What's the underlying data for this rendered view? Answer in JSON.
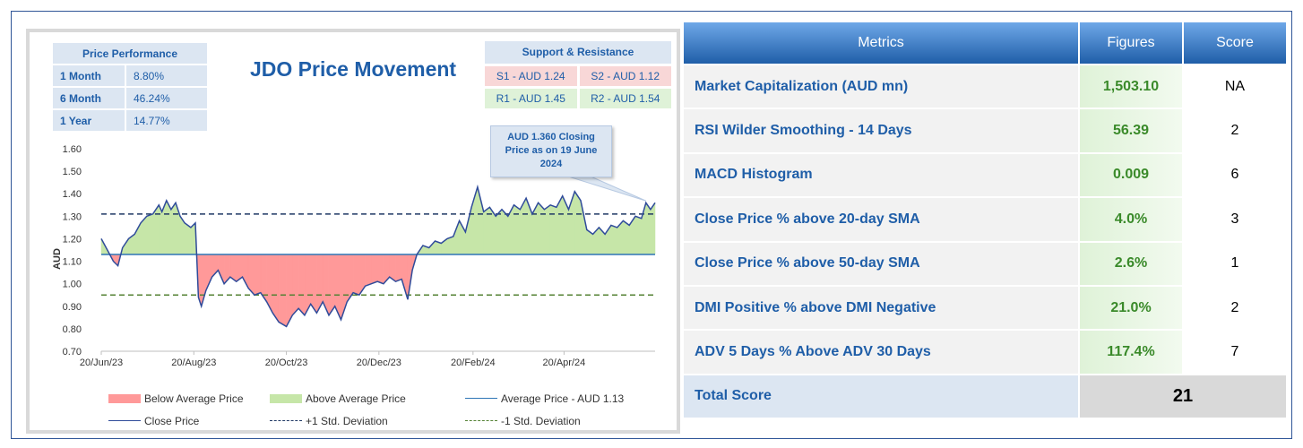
{
  "performance": {
    "header": "Price Performance",
    "rows": [
      {
        "label": "1 Month",
        "value": "8.80%"
      },
      {
        "label": "6 Month",
        "value": "46.24%"
      },
      {
        "label": "1 Year",
        "value": "14.77%"
      }
    ]
  },
  "support_resistance": {
    "header": "Support & Resistance",
    "s1": "S1 - AUD 1.24",
    "s2": "S2 - AUD 1.12",
    "r1": "R1 - AUD 1.45",
    "r2": "R2 - AUD 1.54"
  },
  "callout": {
    "line1": "AUD 1.360 Closing",
    "line2": "Price as on 19 June",
    "line3": "2024"
  },
  "colors": {
    "below_fill": "#ff9999",
    "above_fill": "#c6e6a8",
    "close_line": "#2f4b9a",
    "avg_line": "#2e75b6",
    "plus_sd": "#1f3864",
    "minus_sd": "#548235",
    "header_blue": "#1f5ea8"
  },
  "chart_data": {
    "type": "line",
    "title": "JDO Price Movement",
    "ylabel": "AUD",
    "xlabel": "",
    "ylim": [
      0.7,
      1.6
    ],
    "yticks": [
      "1.60",
      "1.50",
      "1.40",
      "1.30",
      "1.20",
      "1.10",
      "1.00",
      "0.90",
      "0.80",
      "0.70"
    ],
    "xticks": [
      "20/Jun/23",
      "20/Aug/23",
      "20/Oct/23",
      "20/Dec/23",
      "20/Feb/24",
      "20/Apr/24"
    ],
    "x_start": "2023-06-20",
    "x_end": "2024-06-19",
    "average_price": 1.13,
    "plus_1_sd": 1.31,
    "minus_1_sd": 0.95,
    "series": [
      {
        "name": "Close Price",
        "points": [
          [
            "2023-06-20",
            1.2
          ],
          [
            "2023-06-24",
            1.15
          ],
          [
            "2023-06-28",
            1.1
          ],
          [
            "2023-07-01",
            1.08
          ],
          [
            "2023-07-04",
            1.16
          ],
          [
            "2023-07-08",
            1.2
          ],
          [
            "2023-07-12",
            1.22
          ],
          [
            "2023-07-16",
            1.27
          ],
          [
            "2023-07-20",
            1.3
          ],
          [
            "2023-07-24",
            1.31
          ],
          [
            "2023-07-28",
            1.35
          ],
          [
            "2023-07-30",
            1.32
          ],
          [
            "2023-08-02",
            1.37
          ],
          [
            "2023-08-05",
            1.33
          ],
          [
            "2023-08-08",
            1.36
          ],
          [
            "2023-08-11",
            1.3
          ],
          [
            "2023-08-14",
            1.27
          ],
          [
            "2023-08-18",
            1.25
          ],
          [
            "2023-08-21",
            1.27
          ],
          [
            "2023-08-23",
            0.94
          ],
          [
            "2023-08-25",
            0.9
          ],
          [
            "2023-08-28",
            0.97
          ],
          [
            "2023-09-01",
            1.03
          ],
          [
            "2023-09-05",
            1.06
          ],
          [
            "2023-09-09",
            1.0
          ],
          [
            "2023-09-13",
            1.03
          ],
          [
            "2023-09-17",
            1.01
          ],
          [
            "2023-09-21",
            1.03
          ],
          [
            "2023-09-25",
            0.98
          ],
          [
            "2023-09-29",
            0.95
          ],
          [
            "2023-10-03",
            0.96
          ],
          [
            "2023-10-07",
            0.92
          ],
          [
            "2023-10-11",
            0.87
          ],
          [
            "2023-10-15",
            0.83
          ],
          [
            "2023-10-20",
            0.81
          ],
          [
            "2023-10-24",
            0.86
          ],
          [
            "2023-10-28",
            0.89
          ],
          [
            "2023-11-01",
            0.86
          ],
          [
            "2023-11-05",
            0.91
          ],
          [
            "2023-11-09",
            0.87
          ],
          [
            "2023-11-13",
            0.92
          ],
          [
            "2023-11-17",
            0.86
          ],
          [
            "2023-11-21",
            0.9
          ],
          [
            "2023-11-25",
            0.84
          ],
          [
            "2023-11-29",
            0.92
          ],
          [
            "2023-12-03",
            0.96
          ],
          [
            "2023-12-07",
            0.95
          ],
          [
            "2023-12-11",
            0.99
          ],
          [
            "2023-12-15",
            1.0
          ],
          [
            "2023-12-19",
            1.01
          ],
          [
            "2023-12-23",
            1.0
          ],
          [
            "2023-12-27",
            1.03
          ],
          [
            "2023-12-31",
            1.01
          ],
          [
            "2024-01-04",
            1.02
          ],
          [
            "2024-01-08",
            0.93
          ],
          [
            "2024-01-11",
            1.06
          ],
          [
            "2024-01-14",
            1.13
          ],
          [
            "2024-01-18",
            1.17
          ],
          [
            "2024-01-22",
            1.16
          ],
          [
            "2024-01-26",
            1.19
          ],
          [
            "2024-01-30",
            1.18
          ],
          [
            "2024-02-03",
            1.2
          ],
          [
            "2024-02-07",
            1.21
          ],
          [
            "2024-02-11",
            1.28
          ],
          [
            "2024-02-15",
            1.23
          ],
          [
            "2024-02-19",
            1.34
          ],
          [
            "2024-02-23",
            1.43
          ],
          [
            "2024-02-27",
            1.32
          ],
          [
            "2024-03-02",
            1.34
          ],
          [
            "2024-03-06",
            1.3
          ],
          [
            "2024-03-10",
            1.33
          ],
          [
            "2024-03-14",
            1.3
          ],
          [
            "2024-03-18",
            1.35
          ],
          [
            "2024-03-22",
            1.33
          ],
          [
            "2024-03-26",
            1.38
          ],
          [
            "2024-03-30",
            1.31
          ],
          [
            "2024-04-03",
            1.36
          ],
          [
            "2024-04-07",
            1.33
          ],
          [
            "2024-04-11",
            1.35
          ],
          [
            "2024-04-15",
            1.34
          ],
          [
            "2024-04-19",
            1.39
          ],
          [
            "2024-04-23",
            1.33
          ],
          [
            "2024-04-27",
            1.41
          ],
          [
            "2024-05-01",
            1.37
          ],
          [
            "2024-05-05",
            1.24
          ],
          [
            "2024-05-09",
            1.22
          ],
          [
            "2024-05-13",
            1.25
          ],
          [
            "2024-05-17",
            1.22
          ],
          [
            "2024-05-21",
            1.26
          ],
          [
            "2024-05-25",
            1.25
          ],
          [
            "2024-05-29",
            1.28
          ],
          [
            "2024-06-02",
            1.26
          ],
          [
            "2024-06-06",
            1.3
          ],
          [
            "2024-06-10",
            1.29
          ],
          [
            "2024-06-13",
            1.36
          ],
          [
            "2024-06-16",
            1.33
          ],
          [
            "2024-06-19",
            1.36
          ]
        ]
      }
    ],
    "legend": [
      {
        "label": "Below Average Price"
      },
      {
        "label": "Above Average Price"
      },
      {
        "label": "Average Price - AUD 1.13"
      },
      {
        "label": "Close Price"
      },
      {
        "label": "+1 Std. Deviation"
      },
      {
        "label": "-1 Std. Deviation"
      }
    ]
  },
  "metrics": {
    "headers": [
      "Metrics",
      "Figures",
      "Score"
    ],
    "rows": [
      {
        "metric": "Market Capitalization (AUD mn)",
        "figure": "1,503.10",
        "score": "NA"
      },
      {
        "metric": "RSI Wilder Smoothing - 14 Days",
        "figure": "56.39",
        "score": "2"
      },
      {
        "metric": "MACD Histogram",
        "figure": "0.009",
        "score": "6"
      },
      {
        "metric": "Close Price % above 20-day SMA",
        "figure": "4.0%",
        "score": "3"
      },
      {
        "metric": "Close Price % above 50-day SMA",
        "figure": "2.6%",
        "score": "1"
      },
      {
        "metric": "DMI Positive % above DMI Negative",
        "figure": "21.0%",
        "score": "2"
      },
      {
        "metric": "ADV 5 Days % Above ADV 30 Days",
        "figure": "117.4%",
        "score": "7"
      }
    ],
    "total_label": "Total Score",
    "total_value": "21"
  }
}
